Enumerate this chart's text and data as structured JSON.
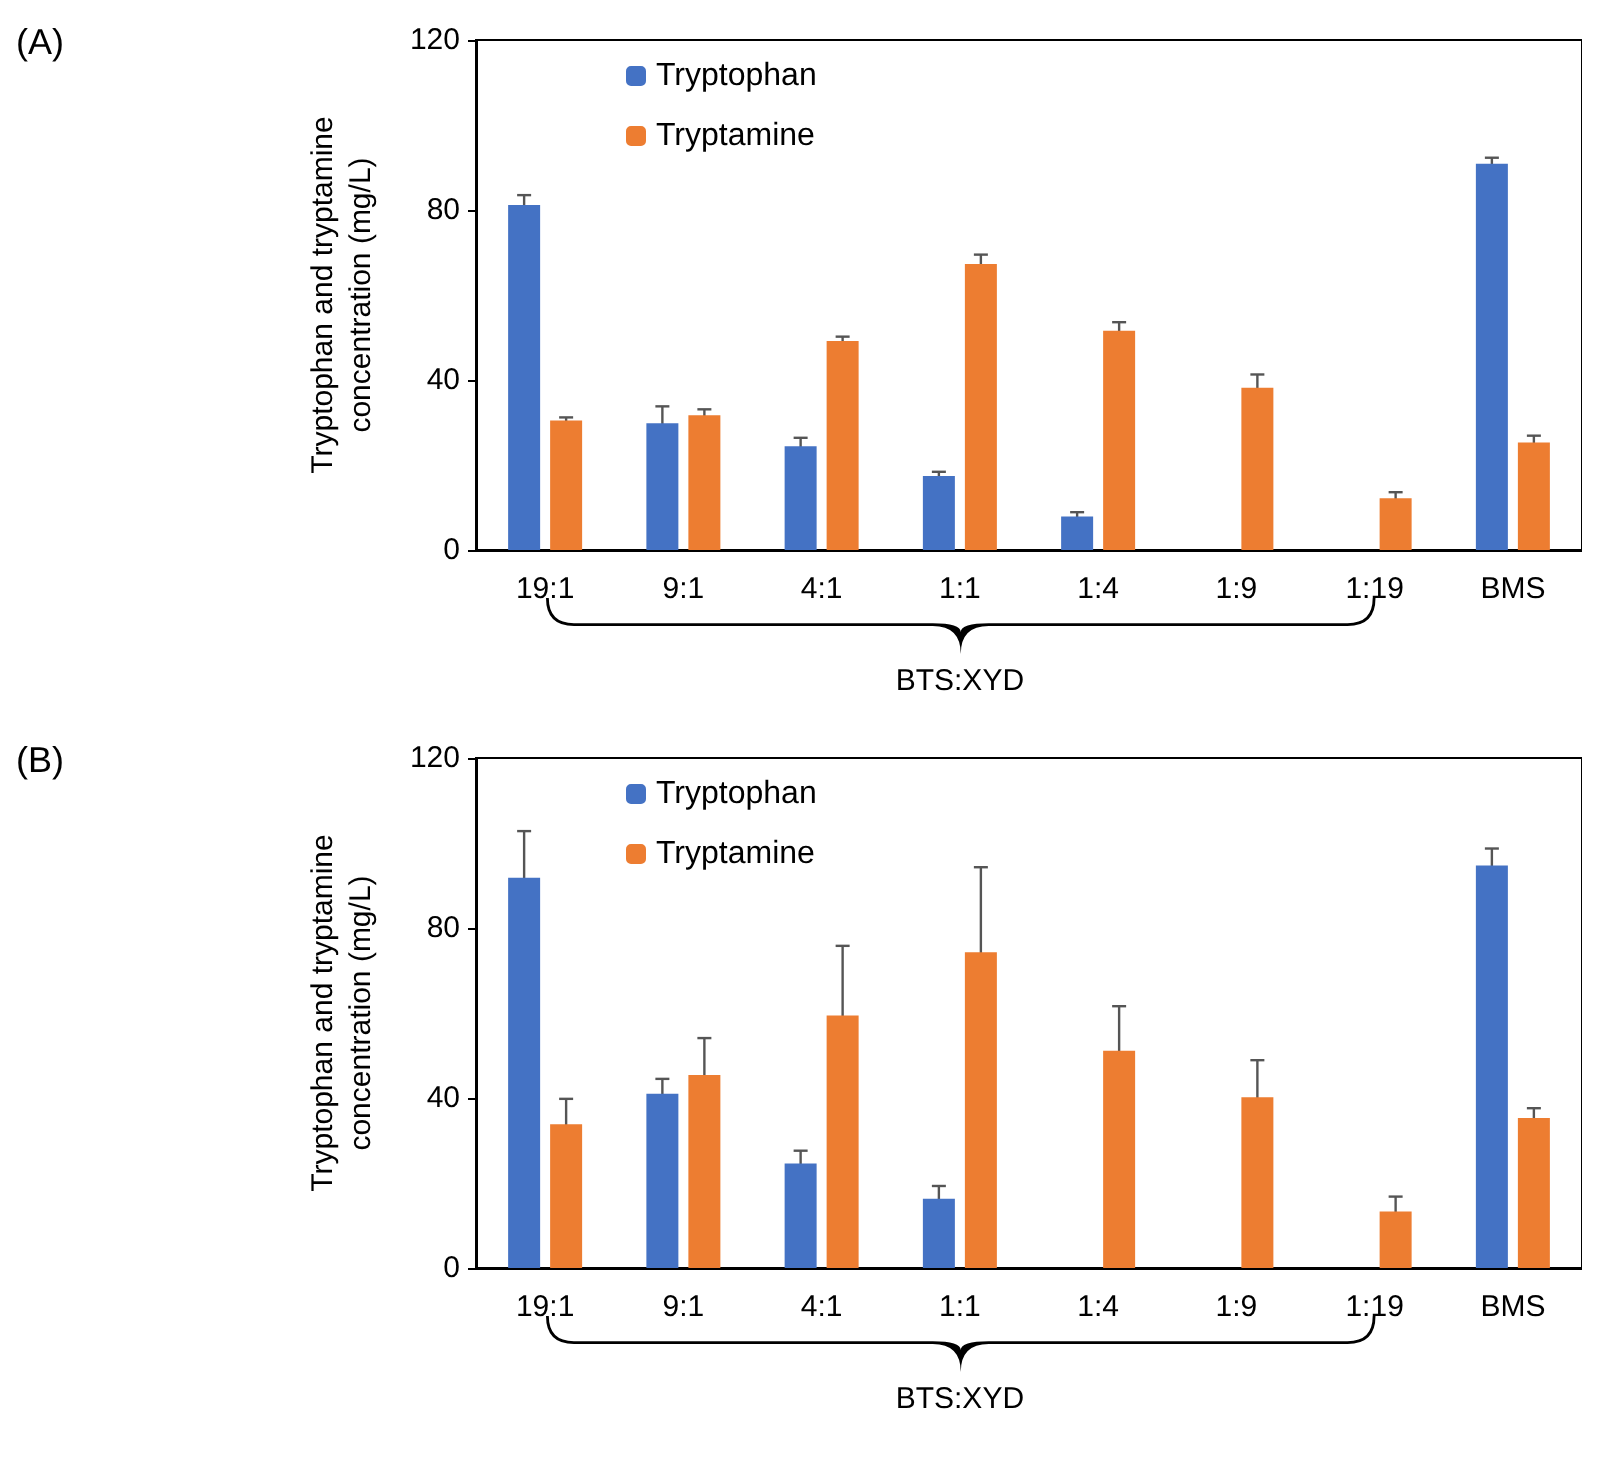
{
  "chart_data": [
    {
      "type": "bar",
      "annotations": [
        "(A)"
      ],
      "xlabel": "BTS:XYD",
      "ylabel": "Tryptophan and tryptamine concentration (mg/L)",
      "categories": [
        "19:1",
        "9:1",
        "4:1",
        "1:1",
        "1:4",
        "1:9",
        "1:19",
        "BMS"
      ],
      "ylim": [
        0,
        120
      ],
      "yticks": [
        0,
        40,
        80,
        120
      ],
      "grid": false,
      "legend": "top left",
      "series": [
        {
          "name": "Tryptophan",
          "color": "#4472c4",
          "values": [
            81.2,
            29.8,
            24.4,
            17.4,
            7.9,
            null,
            null,
            90.9
          ],
          "errors": [
            2.3,
            4,
            2,
            1,
            1,
            null,
            null,
            1.4
          ]
        },
        {
          "name": "Tryptamine",
          "color": "#ed7d31",
          "values": [
            30.5,
            31.7,
            49.2,
            67.3,
            51.6,
            38.2,
            12.2,
            25.3
          ],
          "errors": [
            0.7,
            1.4,
            1,
            2.2,
            2,
            3.1,
            1.4,
            1.6
          ]
        }
      ]
    },
    {
      "type": "bar",
      "annotations": [
        "(B)"
      ],
      "xlabel": "BTS:XYD",
      "ylabel": "Tryptophan and tryptamine concentration (mg/L)",
      "categories": [
        "19:1",
        "9:1",
        "4:1",
        "1:1",
        "1:4",
        "1:9",
        "1:19",
        "BMS"
      ],
      "ylim": [
        0,
        120
      ],
      "yticks": [
        0,
        40,
        80,
        120
      ],
      "grid": false,
      "legend": "top left",
      "series": [
        {
          "name": "Tryptophan",
          "color": "#4472c4",
          "values": [
            91.8,
            41,
            24.6,
            16.3,
            null,
            null,
            null,
            94.7
          ],
          "errors": [
            11,
            3.5,
            3,
            3,
            null,
            null,
            null,
            4
          ]
        },
        {
          "name": "Tryptamine",
          "color": "#ed7d31",
          "values": [
            33.8,
            45.4,
            59.4,
            74.3,
            51.1,
            40.2,
            13.3,
            35.3
          ],
          "errors": [
            6,
            8.7,
            16.4,
            20,
            10.5,
            8.7,
            3.5,
            2.3
          ]
        }
      ]
    }
  ]
}
